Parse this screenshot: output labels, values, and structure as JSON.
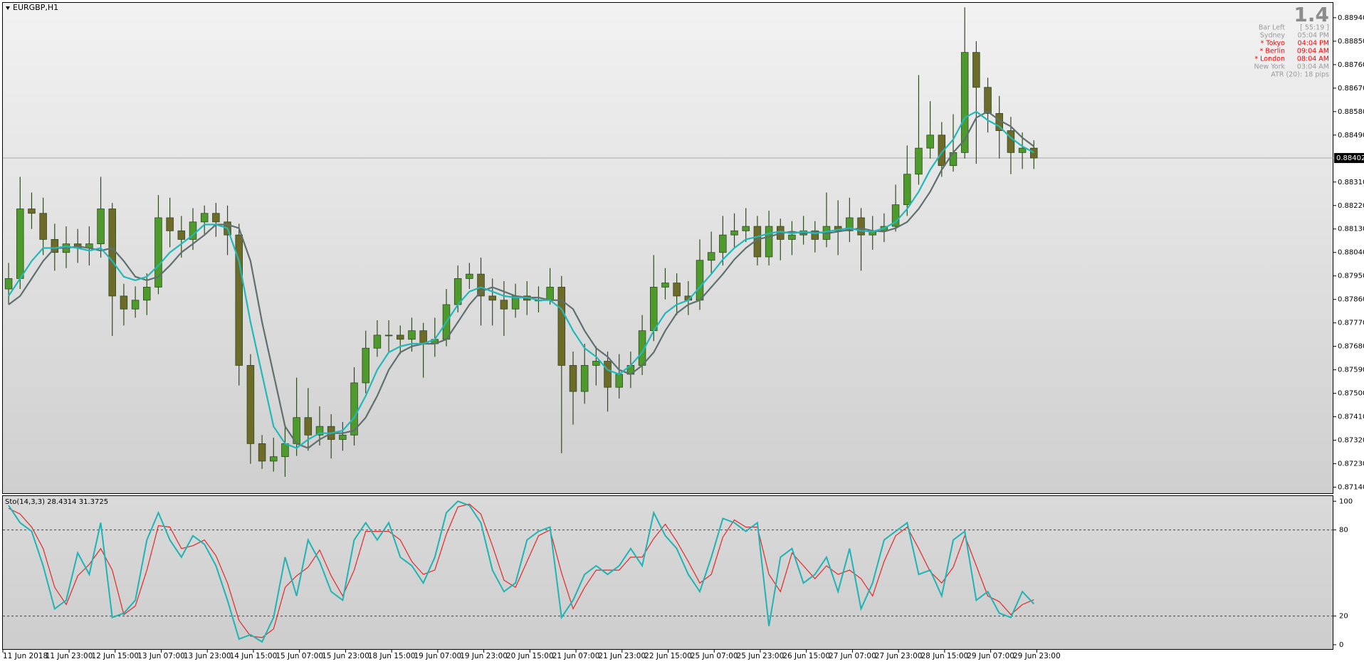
{
  "title": "EURGBP,H1",
  "info": {
    "big": "1.4",
    "rows": [
      {
        "label": "Bar Left",
        "value": "[ 55:19 ]",
        "color": "#9a9a9a"
      },
      {
        "label": "Sydney",
        "value": "05:04 PM",
        "color": "#9a9a9a"
      },
      {
        "label": "* Tokyo",
        "value": "04:04 PM",
        "color": "#ff0000"
      },
      {
        "label": "* Berlin",
        "value": "09:04 AM",
        "color": "#ff0000"
      },
      {
        "label": "* London",
        "value": "08:04 AM",
        "color": "#ff0000"
      },
      {
        "label": "New York",
        "value": "03:04 AM",
        "color": "#9a9a9a"
      }
    ],
    "footer": "ATR (20): 18 pips"
  },
  "chart_data": [
    {
      "type": "candlestick",
      "open": [
        0.879,
        0.8794,
        0.88207,
        0.8819,
        0.8809,
        0.8804,
        0.88073,
        0.88057,
        0.88073,
        0.88207,
        0.87873,
        0.87823,
        0.87857,
        0.87907,
        0.88173,
        0.88123,
        0.8809,
        0.88157,
        0.8819,
        0.88157,
        0.88107,
        0.87607,
        0.87307,
        0.8724,
        0.87257,
        0.87307,
        0.87407,
        0.8734,
        0.87373,
        0.87323,
        0.8734,
        0.8754,
        0.87673,
        0.87723,
        0.87723,
        0.87707,
        0.8774,
        0.8769,
        0.87707,
        0.8784,
        0.8794,
        0.87957,
        0.87873,
        0.87857,
        0.87823,
        0.87873,
        0.87857,
        0.87857,
        0.87907,
        0.87607,
        0.87507,
        0.87607,
        0.87623,
        0.87523,
        0.87573,
        0.87607,
        0.8774,
        0.87907,
        0.87923,
        0.87873,
        0.87857,
        0.8801,
        0.8804,
        0.88107,
        0.88123,
        0.8814,
        0.88023,
        0.8814,
        0.8809,
        0.88107,
        0.88123,
        0.8809,
        0.8814,
        0.88123,
        0.88173,
        0.88107,
        0.88123,
        0.8814,
        0.88223,
        0.8834,
        0.8844,
        0.8849,
        0.88373,
        0.88423,
        0.88807,
        0.88673,
        0.88573,
        0.88507,
        0.88423,
        0.8844
      ],
      "high": [
        0.88,
        0.8833,
        0.8827,
        0.8825,
        0.8815,
        0.8814,
        0.8813,
        0.8814,
        0.8833,
        0.8823,
        0.8792,
        0.8791,
        0.8796,
        0.8826,
        0.8825,
        0.8818,
        0.8821,
        0.8822,
        0.8823,
        0.8822,
        0.8815,
        0.8765,
        0.8734,
        0.8733,
        0.8738,
        0.8756,
        0.8752,
        0.8745,
        0.8742,
        0.8739,
        0.876,
        0.8774,
        0.8778,
        0.8778,
        0.8776,
        0.8779,
        0.8777,
        0.8779,
        0.879,
        0.8799,
        0.88,
        0.8802,
        0.8794,
        0.8793,
        0.8792,
        0.8793,
        0.8791,
        0.8798,
        0.8795,
        0.8766,
        0.8769,
        0.8768,
        0.8766,
        0.8765,
        0.8766,
        0.878,
        0.8803,
        0.8798,
        0.8796,
        0.8793,
        0.8809,
        0.8812,
        0.8818,
        0.8819,
        0.8821,
        0.8818,
        0.882,
        0.8817,
        0.8816,
        0.8818,
        0.8816,
        0.8827,
        0.8824,
        0.8825,
        0.8821,
        0.8818,
        0.8819,
        0.883,
        0.8845,
        0.8872,
        0.8862,
        0.8854,
        0.8857,
        0.8898,
        0.8885,
        0.8871,
        0.8864,
        0.8856,
        0.885,
        0.8847
      ],
      "low": [
        0.8784,
        0.879,
        0.8813,
        0.8803,
        0.8797,
        0.8798,
        0.88,
        0.8799,
        0.8802,
        0.8772,
        0.8776,
        0.8779,
        0.878,
        0.8788,
        0.8806,
        0.8802,
        0.8805,
        0.8811,
        0.881,
        0.8803,
        0.8753,
        0.8723,
        0.8721,
        0.872,
        0.8718,
        0.8726,
        0.8728,
        0.873,
        0.8725,
        0.8728,
        0.873,
        0.875,
        0.8764,
        0.8766,
        0.8765,
        0.8766,
        0.8756,
        0.8764,
        0.8768,
        0.8781,
        0.879,
        0.8776,
        0.8776,
        0.8772,
        0.8779,
        0.878,
        0.8781,
        0.8784,
        0.8727,
        0.8738,
        0.8746,
        0.8753,
        0.8743,
        0.8748,
        0.8752,
        0.8757,
        0.877,
        0.8786,
        0.878,
        0.878,
        0.8782,
        0.8796,
        0.8799,
        0.8806,
        0.8808,
        0.8799,
        0.8799,
        0.8801,
        0.8803,
        0.8807,
        0.8804,
        0.8806,
        0.8803,
        0.8808,
        0.8797,
        0.8805,
        0.8808,
        0.8812,
        0.8818,
        0.883,
        0.884,
        0.8833,
        0.8835,
        0.884,
        0.8838,
        0.885,
        0.884,
        0.8834,
        0.8836,
        0.8836
      ],
      "close": [
        0.8794,
        0.88207,
        0.8819,
        0.8809,
        0.8804,
        0.88073,
        0.88057,
        0.88073,
        0.88207,
        0.87873,
        0.87823,
        0.87857,
        0.87907,
        0.88173,
        0.88123,
        0.8809,
        0.88157,
        0.8819,
        0.88157,
        0.88107,
        0.87607,
        0.87307,
        0.8724,
        0.87257,
        0.87307,
        0.87407,
        0.8734,
        0.87373,
        0.87323,
        0.8734,
        0.8754,
        0.87673,
        0.87723,
        0.87723,
        0.87707,
        0.8774,
        0.8769,
        0.87707,
        0.8784,
        0.8794,
        0.87957,
        0.87873,
        0.87857,
        0.87823,
        0.87873,
        0.87857,
        0.87857,
        0.87907,
        0.87607,
        0.87507,
        0.87607,
        0.87623,
        0.87523,
        0.87573,
        0.87607,
        0.8774,
        0.87907,
        0.87923,
        0.87873,
        0.87857,
        0.8801,
        0.8804,
        0.88107,
        0.88123,
        0.8814,
        0.88023,
        0.8814,
        0.8809,
        0.88107,
        0.88123,
        0.8809,
        0.8814,
        0.88123,
        0.88173,
        0.88107,
        0.88123,
        0.8814,
        0.88223,
        0.8834,
        0.8844,
        0.8849,
        0.88373,
        0.88423,
        0.88807,
        0.88673,
        0.88573,
        0.88507,
        0.88423,
        0.8844,
        0.88402
      ],
      "colors": {
        "up": "#4f9a2c",
        "down": "#6d6a2a",
        "wick": "#2f4a1e"
      },
      "overlays": [
        {
          "color": "#5f6f6f",
          "values": [
            0.8784,
            0.87873,
            0.8794,
            0.88007,
            0.88057,
            0.88057,
            0.88063,
            0.88057,
            0.88047,
            0.88057,
            0.88007,
            0.87947,
            0.87933,
            0.87947,
            0.8799,
            0.8804,
            0.88073,
            0.88107,
            0.88147,
            0.88147,
            0.88133,
            0.88007,
            0.87773,
            0.87573,
            0.87373,
            0.87307,
            0.8729,
            0.87323,
            0.87347,
            0.87347,
            0.87357,
            0.87407,
            0.8749,
            0.8759,
            0.87657,
            0.8768,
            0.8769,
            0.8769,
            0.87707,
            0.87773,
            0.8784,
            0.8789,
            0.87907,
            0.8789,
            0.87873,
            0.87867,
            0.87867,
            0.87857,
            0.87857,
            0.87823,
            0.8774,
            0.87673,
            0.8764,
            0.8759,
            0.87573,
            0.87607,
            0.87657,
            0.8774,
            0.87807,
            0.8784,
            0.87857,
            0.87907,
            0.87957,
            0.88013,
            0.88057,
            0.8809,
            0.881,
            0.88113,
            0.8812,
            0.88113,
            0.8812,
            0.88113,
            0.8812,
            0.88127,
            0.88133,
            0.88123,
            0.8812,
            0.88133,
            0.88157,
            0.88207,
            0.88273,
            0.88357,
            0.88423,
            0.88473,
            0.88557,
            0.8858,
            0.88547,
            0.88523,
            0.8848,
            0.88447
          ]
        },
        {
          "color": "#22b8b8",
          "values": [
            0.87873,
            0.8794,
            0.88007,
            0.88057,
            0.88057,
            0.88063,
            0.88057,
            0.88047,
            0.88057,
            0.88007,
            0.87947,
            0.87933,
            0.87947,
            0.8799,
            0.8804,
            0.88073,
            0.88107,
            0.88147,
            0.88147,
            0.88133,
            0.88007,
            0.87773,
            0.87573,
            0.87373,
            0.87307,
            0.8729,
            0.87323,
            0.87347,
            0.87347,
            0.87357,
            0.87407,
            0.8749,
            0.8759,
            0.87657,
            0.8768,
            0.8769,
            0.8769,
            0.87707,
            0.87773,
            0.8784,
            0.8789,
            0.87907,
            0.8789,
            0.87873,
            0.87867,
            0.87867,
            0.87857,
            0.87857,
            0.87823,
            0.8774,
            0.87673,
            0.8764,
            0.8759,
            0.87573,
            0.87607,
            0.87657,
            0.8774,
            0.87807,
            0.8784,
            0.87857,
            0.87907,
            0.87957,
            0.88013,
            0.88057,
            0.8809,
            0.881,
            0.88113,
            0.8812,
            0.88113,
            0.8812,
            0.88113,
            0.8812,
            0.88127,
            0.88133,
            0.88123,
            0.8812,
            0.88133,
            0.88157,
            0.88207,
            0.88273,
            0.88357,
            0.88423,
            0.88473,
            0.88557,
            0.8858,
            0.88547,
            0.88523,
            0.8848,
            0.88447,
            0.88423
          ]
        }
      ],
      "xlim": [
        0,
        115.5
      ],
      "xticks": [
        {
          "value": 0,
          "label": "11 Jun 2018"
        },
        {
          "value": 5.75,
          "label": "11 Jun 23:00"
        },
        {
          "value": 9.75,
          "label": "12 Jun 15:00"
        },
        {
          "value": 13.75,
          "label": "13 Jun 07:00"
        },
        {
          "value": 17.75,
          "label": "13 Jun 23:00"
        },
        {
          "value": 21.75,
          "label": "14 Jun 15:00"
        },
        {
          "value": 25.75,
          "label": "15 Jun 07:00"
        },
        {
          "value": 29.75,
          "label": "15 Jun 23:00"
        },
        {
          "value": 33.75,
          "label": "18 Jun 15:00"
        },
        {
          "value": 37.75,
          "label": "19 Jun 07:00"
        },
        {
          "value": 41.75,
          "label": "19 Jun 23:00"
        },
        {
          "value": 45.75,
          "label": "20 Jun 15:00"
        },
        {
          "value": 49.75,
          "label": "21 Jun 07:00"
        },
        {
          "value": 53.75,
          "label": "21 Jun 23:00"
        },
        {
          "value": 57.75,
          "label": "22 Jun 15:00"
        },
        {
          "value": 61.75,
          "label": "25 Jun 07:00"
        },
        {
          "value": 65.75,
          "label": "25 Jun 23:00"
        },
        {
          "value": 69.75,
          "label": "26 Jun 15:00"
        },
        {
          "value": 73.75,
          "label": "27 Jun 07:00"
        },
        {
          "value": 77.75,
          "label": "27 Jun 23:00"
        },
        {
          "value": 81.75,
          "label": "28 Jun 15:00"
        },
        {
          "value": 85.75,
          "label": "29 Jun 07:00"
        },
        {
          "value": 89.75,
          "label": "29 Jun 23:00"
        }
      ],
      "ylim": [
        0.87117,
        0.88997
      ],
      "yticks": [
        {
          "value": 0.8894,
          "label": "0.88940"
        },
        {
          "value": 0.8885,
          "label": "0.88850"
        },
        {
          "value": 0.8876,
          "label": "0.88760"
        },
        {
          "value": 0.8867,
          "label": "0.88670"
        },
        {
          "value": 0.8858,
          "label": "0.88580"
        },
        {
          "value": 0.8849,
          "label": "0.88490"
        },
        {
          "value": 0.8831,
          "label": "0.88310"
        },
        {
          "value": 0.8822,
          "label": "0.88220"
        },
        {
          "value": 0.8813,
          "label": "0.88130"
        },
        {
          "value": 0.8804,
          "label": "0.88040"
        },
        {
          "value": 0.8795,
          "label": "0.87950"
        },
        {
          "value": 0.8786,
          "label": "0.87860"
        },
        {
          "value": 0.8777,
          "label": "0.87770"
        },
        {
          "value": 0.8768,
          "label": "0.87680"
        },
        {
          "value": 0.8759,
          "label": "0.87590"
        },
        {
          "value": 0.875,
          "label": "0.87500"
        },
        {
          "value": 0.8741,
          "label": "0.87410"
        },
        {
          "value": 0.8732,
          "label": "0.87320"
        },
        {
          "value": 0.8723,
          "label": "0.87230"
        },
        {
          "value": 0.8714,
          "label": "0.87140"
        }
      ],
      "current_price": {
        "value": 0.88402,
        "label": "0.88402"
      }
    },
    {
      "type": "line",
      "label": "Sto(14,3,3) 28.4314 31.3725",
      "series": [
        {
          "color": "#e02a2a",
          "values": [
            95,
            91,
            82,
            67,
            40,
            28,
            48,
            56,
            67,
            52,
            21,
            27,
            52,
            83,
            82,
            67,
            69,
            73,
            62,
            43,
            17,
            6,
            5,
            11,
            40,
            48,
            54,
            66,
            48,
            34,
            52,
            79,
            79,
            79,
            73,
            58,
            49,
            52,
            77,
            96,
            98,
            91,
            69,
            45,
            40,
            58,
            76,
            80,
            50,
            25,
            40,
            52,
            52,
            52,
            61,
            61,
            74,
            84,
            72,
            58,
            43,
            49,
            75,
            87,
            82,
            82,
            49,
            37,
            64,
            55,
            46,
            55,
            49,
            52,
            46,
            34,
            58,
            76,
            82,
            67,
            51,
            43,
            54,
            76,
            55,
            34,
            30,
            21,
            28,
            31.3725
          ]
        },
        {
          "color": "#1fb3b3",
          "values": [
            97,
            85,
            79,
            55,
            25,
            31,
            64,
            49,
            85,
            19,
            22,
            31,
            73,
            92,
            73,
            61,
            76,
            70,
            55,
            31,
            4,
            7,
            2,
            19,
            61,
            34,
            73,
            58,
            37,
            31,
            73,
            85,
            73,
            85,
            61,
            55,
            43,
            61,
            92,
            100,
            97,
            85,
            52,
            37,
            43,
            73,
            79,
            82,
            19,
            31,
            49,
            55,
            49,
            55,
            67,
            55,
            92,
            76,
            67,
            49,
            37,
            61,
            88,
            85,
            79,
            85,
            13,
            61,
            67,
            43,
            49,
            61,
            37,
            67,
            25,
            43,
            73,
            79,
            85,
            49,
            52,
            34,
            73,
            79,
            31,
            37,
            22,
            19,
            37,
            28.4314
          ]
        }
      ],
      "ylim": [
        -3,
        103.6
      ],
      "yticks": [
        0,
        20,
        80,
        100
      ],
      "levels": [
        20,
        80
      ]
    }
  ]
}
